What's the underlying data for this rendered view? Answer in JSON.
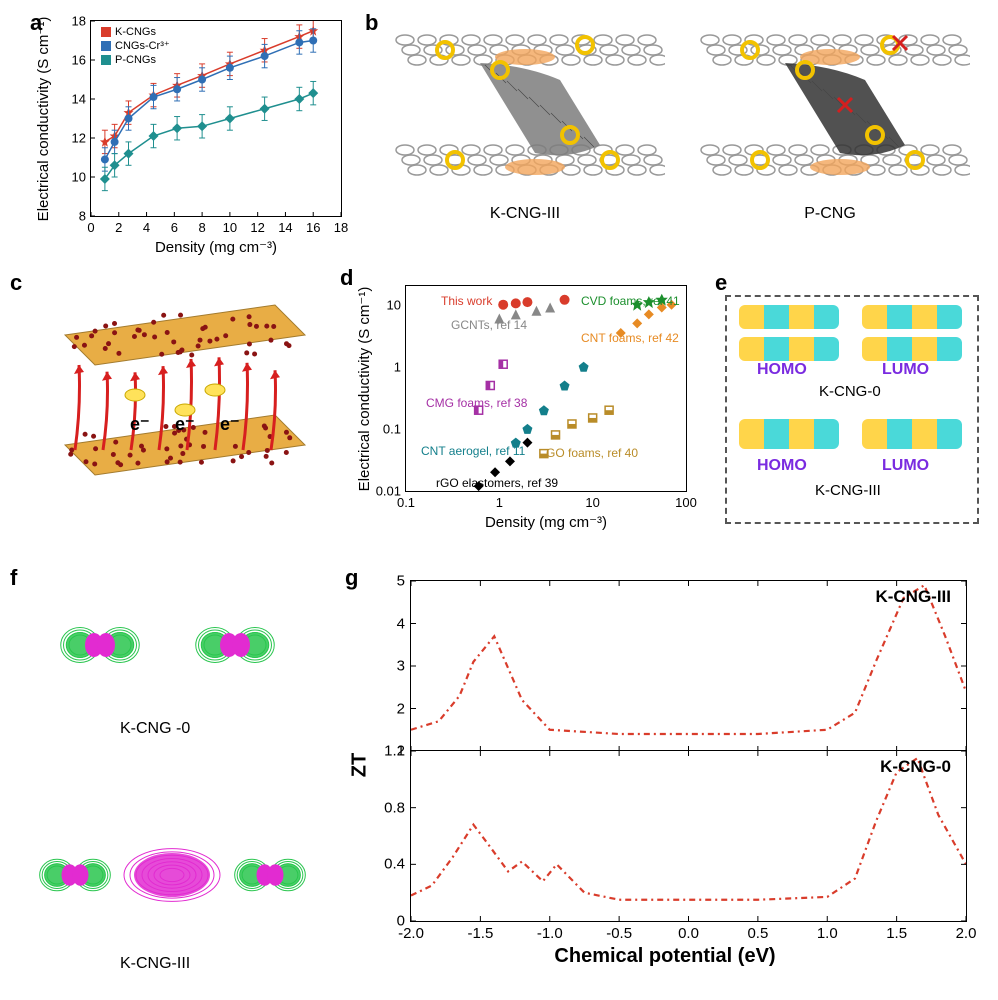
{
  "colors": {
    "red": "#d93c2b",
    "blue": "#2f6fb5",
    "teal": "#1f8f8f",
    "dark": "#222222",
    "purple": "#a530a5",
    "orange": "#e78b24",
    "gold": "#b98c28",
    "green": "#1c8f2d",
    "magenta": "#e22bd1",
    "green2": "#29c54e"
  },
  "panel_a": {
    "letter": "a",
    "type": "line",
    "ylabel": "Electrical conductivity (S cm⁻¹)",
    "xlabel": "Density (mg cm⁻³)",
    "xlim": [
      0,
      18
    ],
    "xtick_step": 2,
    "ylim": [
      8,
      18
    ],
    "ytick_step": 2,
    "legend": [
      {
        "label": "K-CNGs",
        "color": "#d93c2b",
        "marker": "star"
      },
      {
        "label": "CNGs-Cr³⁺",
        "color": "#2f6fb5",
        "marker": "circle"
      },
      {
        "label": "P-CNGs",
        "color": "#1f8f8f",
        "marker": "diamond"
      }
    ],
    "x": [
      1,
      1.7,
      2.7,
      4.5,
      6.2,
      8,
      10,
      12.5,
      15,
      16
    ],
    "series": {
      "K-CNGs": [
        11.8,
        12.1,
        13.3,
        14.2,
        14.7,
        15.2,
        15.8,
        16.5,
        17.2,
        17.5
      ],
      "CNGs-Cr3+": [
        10.9,
        11.8,
        13.0,
        14.1,
        14.5,
        15.0,
        15.6,
        16.2,
        16.9,
        17.0
      ],
      "P-CNGs": [
        9.9,
        10.6,
        11.2,
        12.1,
        12.5,
        12.6,
        13.0,
        13.5,
        14.0,
        14.3
      ]
    },
    "error": 0.6
  },
  "panel_b": {
    "letter": "b",
    "left": {
      "label": "K-CNG-III",
      "tube_color": "#7d7d7d"
    },
    "right": {
      "label": "P-CNG",
      "tube_color": "#333333"
    }
  },
  "panel_c": {
    "letter": "c",
    "annotations": [
      "e⁻",
      "e⁻",
      "e⁻"
    ],
    "sheet_color": "#e6a531",
    "arrow_color": "#d71f1f"
  },
  "panel_d": {
    "letter": "d",
    "type": "scatter-log",
    "ylabel": "Electrical conductivity (S cm⁻¹)",
    "xlabel": "Density (mg cm⁻³)",
    "xlim_log": [
      0.1,
      100
    ],
    "ylim_log": [
      0.01,
      20
    ],
    "series": [
      {
        "label": "This work",
        "color": "#d93c2b",
        "marker": "circle",
        "pts": [
          [
            1.1,
            10
          ],
          [
            1.5,
            10.5
          ],
          [
            2.0,
            11
          ],
          [
            5,
            12
          ]
        ]
      },
      {
        "label": "CVD foams, ref 41",
        "color": "#1c8f2d",
        "marker": "star",
        "pts": [
          [
            30,
            10
          ],
          [
            40,
            11
          ],
          [
            55,
            12
          ]
        ]
      },
      {
        "label": "GCNTs, ref 14",
        "color": "#888888",
        "marker": "triangle",
        "pts": [
          [
            1,
            6
          ],
          [
            1.5,
            7
          ],
          [
            2.5,
            8
          ],
          [
            3.5,
            9
          ]
        ]
      },
      {
        "label": "CNT foams, ref 42",
        "color": "#e78b24",
        "marker": "diamond",
        "pts": [
          [
            20,
            3.5
          ],
          [
            30,
            5
          ],
          [
            40,
            7
          ],
          [
            55,
            9
          ],
          [
            70,
            10
          ]
        ]
      },
      {
        "label": "CMG foams, ref 38",
        "color": "#a530a5",
        "marker": "square",
        "pts": [
          [
            0.6,
            0.2
          ],
          [
            0.8,
            0.5
          ],
          [
            1.1,
            1.1
          ]
        ]
      },
      {
        "label": "CNT aerogel, ref 11",
        "color": "#137f8b",
        "marker": "pentagon",
        "pts": [
          [
            1.5,
            0.06
          ],
          [
            2,
            0.1
          ],
          [
            3,
            0.2
          ],
          [
            5,
            0.5
          ],
          [
            8,
            1.0
          ]
        ]
      },
      {
        "label": "GO foams, ref 40",
        "color": "#b98c28",
        "marker": "halfsq",
        "pts": [
          [
            3,
            0.04
          ],
          [
            4,
            0.08
          ],
          [
            6,
            0.12
          ],
          [
            10,
            0.15
          ],
          [
            15,
            0.2
          ]
        ]
      },
      {
        "label": "rGO elastomers, ref 39",
        "color": "#000000",
        "marker": "diamond",
        "pts": [
          [
            0.6,
            0.012
          ],
          [
            0.9,
            0.02
          ],
          [
            1.3,
            0.03
          ],
          [
            2,
            0.06
          ]
        ]
      }
    ]
  },
  "panel_e": {
    "letter": "e",
    "rows": [
      {
        "name": "K-CNG-0",
        "homo": "HOMO",
        "lumo": "LUMO"
      },
      {
        "name": "K-CNG-III",
        "homo": "HOMO",
        "lumo": "LUMO"
      }
    ],
    "label_color": "#7a2be0"
  },
  "panel_f": {
    "letter": "f",
    "items": [
      {
        "label": "K-CNG -0"
      },
      {
        "label": "K-CNG-III"
      }
    ],
    "lobe_pos_color": "#e22bd1",
    "lobe_neg_color": "#29c54e"
  },
  "panel_g": {
    "letter": "g",
    "type": "line",
    "ylabel": "ZT",
    "xlabel": "Chemical potential (eV)",
    "xlim": [
      -2,
      2
    ],
    "xtick_step": 0.5,
    "line_color": "#d93c2b",
    "line_dash": "6 4 2 4",
    "top": {
      "title": "K-CNG-III",
      "ylim": [
        1,
        5
      ],
      "ytick_step": 1,
      "x": [
        -2.0,
        -1.8,
        -1.65,
        -1.55,
        -1.4,
        -1.2,
        -1.0,
        -0.5,
        0.0,
        0.5,
        1.0,
        1.2,
        1.35,
        1.55,
        1.7,
        1.85,
        2.0
      ],
      "y": [
        1.5,
        1.7,
        2.3,
        3.1,
        3.7,
        2.2,
        1.5,
        1.4,
        1.4,
        1.4,
        1.5,
        1.9,
        3.1,
        4.6,
        4.9,
        3.7,
        2.4
      ]
    },
    "bottom": {
      "title": "K-CNG-0",
      "ylim": [
        0,
        1.2
      ],
      "ytick_step": 0.4,
      "x": [
        -2.0,
        -1.85,
        -1.7,
        -1.55,
        -1.45,
        -1.3,
        -1.2,
        -1.05,
        -0.95,
        -0.75,
        -0.5,
        0.0,
        0.5,
        1.0,
        1.2,
        1.35,
        1.5,
        1.65,
        1.8,
        2.0
      ],
      "y": [
        0.18,
        0.25,
        0.45,
        0.68,
        0.55,
        0.35,
        0.42,
        0.28,
        0.4,
        0.2,
        0.15,
        0.15,
        0.15,
        0.17,
        0.3,
        0.7,
        1.05,
        1.15,
        0.75,
        0.4
      ]
    }
  }
}
